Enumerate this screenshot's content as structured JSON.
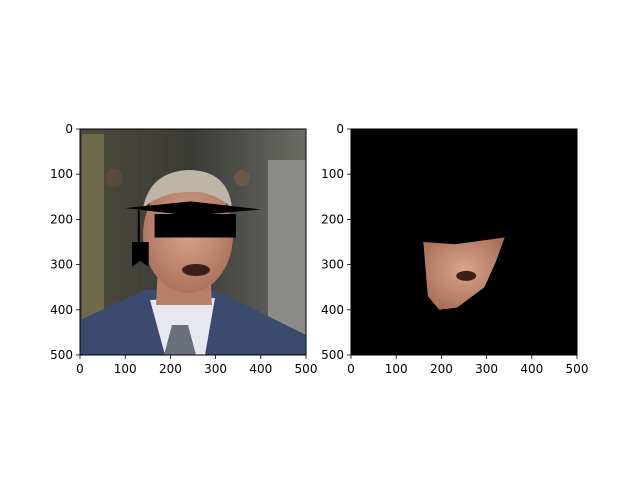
{
  "chart_data": [
    {
      "type": "image",
      "title": "",
      "xlabel": "",
      "ylabel": "",
      "xlim": [
        0,
        500
      ],
      "ylim": [
        500,
        0
      ],
      "xticks": [
        0,
        100,
        200,
        300,
        400,
        500
      ],
      "yticks": [
        0,
        100,
        200,
        300,
        400,
        500
      ],
      "content": "photo-with-graduation-cap-overlay",
      "cap": {
        "board": [
          [
            100,
            175
          ],
          [
            245,
            160
          ],
          [
            400,
            178
          ],
          [
            245,
            192
          ]
        ],
        "crown": [
          [
            165,
            188
          ],
          [
            345,
            188
          ],
          [
            345,
            240
          ],
          [
            165,
            240
          ]
        ],
        "tassel_cord": [
          [
            130,
            180
          ],
          [
            130,
            258
          ]
        ],
        "tassel": [
          [
            115,
            250
          ],
          [
            152,
            250
          ],
          [
            152,
            305
          ],
          [
            133,
            292
          ],
          [
            115,
            305
          ]
        ]
      }
    },
    {
      "type": "image",
      "title": "",
      "xlabel": "",
      "ylabel": "",
      "xlim": [
        0,
        500
      ],
      "ylim": [
        500,
        0
      ],
      "xticks": [
        0,
        100,
        200,
        300,
        400,
        500
      ],
      "yticks": [
        0,
        100,
        200,
        300,
        400,
        500
      ],
      "content": "segmented-face-on-black",
      "face_polygon": [
        [
          160,
          250
        ],
        [
          230,
          255
        ],
        [
          340,
          240
        ],
        [
          320,
          295
        ],
        [
          295,
          350
        ],
        [
          235,
          395
        ],
        [
          195,
          400
        ],
        [
          170,
          370
        ]
      ]
    }
  ],
  "colors": {
    "background": "#000000",
    "skin": "#c8937c",
    "cap": "#000000"
  }
}
